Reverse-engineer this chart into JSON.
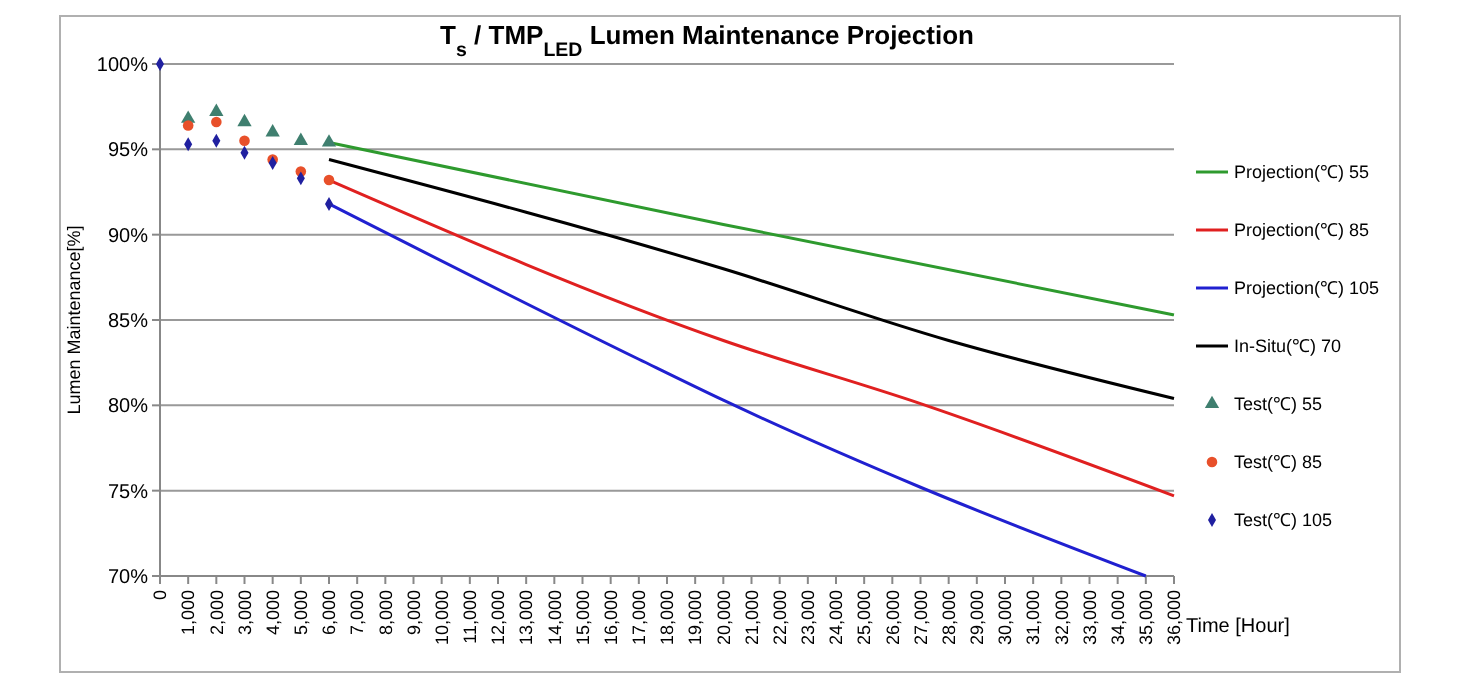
{
  "chart_data": {
    "type": "line",
    "title": "T$_{s}$ / TMP$_{LED}$ Lumen Maintenance Projection",
    "xlabel": "Time [Hour]",
    "ylabel": "Lumen Maintenance[%]",
    "xlim": [
      0,
      36000
    ],
    "ylim": [
      70,
      100
    ],
    "xticks": [
      0,
      {
        "value": 1000,
        "label": "1,000"
      },
      {
        "value": 2000,
        "label": "2,000"
      },
      {
        "value": 3000,
        "label": "3,000"
      },
      {
        "value": 4000,
        "label": "4,000"
      },
      {
        "value": 5000,
        "label": "5,000"
      },
      {
        "value": 6000,
        "label": "6,000"
      },
      {
        "value": 7000,
        "label": "7,000"
      },
      {
        "value": 8000,
        "label": "8,000"
      },
      {
        "value": 9000,
        "label": "9,000"
      },
      {
        "value": 10000,
        "label": "10,000"
      },
      {
        "value": 11000,
        "label": "11,000"
      },
      {
        "value": 12000,
        "label": "12,000"
      },
      {
        "value": 13000,
        "label": "13,000"
      },
      {
        "value": 14000,
        "label": "14,000"
      },
      {
        "value": 15000,
        "label": "15,000"
      },
      {
        "value": 16000,
        "label": "16,000"
      },
      {
        "value": 17000,
        "label": "17,000"
      },
      {
        "value": 18000,
        "label": "18,000"
      },
      {
        "value": 19000,
        "label": "19,000"
      },
      {
        "value": 20000,
        "label": "20,000"
      },
      {
        "value": 21000,
        "label": "21,000"
      },
      {
        "value": 22000,
        "label": "22,000"
      },
      {
        "value": 23000,
        "label": "23,000"
      },
      {
        "value": 24000,
        "label": "24,000"
      },
      {
        "value": 25000,
        "label": "25,000"
      },
      {
        "value": 26000,
        "label": "26,000"
      },
      {
        "value": 27000,
        "label": "27,000"
      },
      {
        "value": 28000,
        "label": "28,000"
      },
      {
        "value": 29000,
        "label": "29,000"
      },
      {
        "value": 30000,
        "label": "30,000"
      },
      {
        "value": 31000,
        "label": "31,000"
      },
      {
        "value": 32000,
        "label": "32,000"
      },
      {
        "value": 33000,
        "label": "33,000"
      },
      {
        "value": 34000,
        "label": "34,000"
      },
      {
        "value": 35000,
        "label": "35,000"
      },
      {
        "value": 36000,
        "label": "36,000"
      }
    ],
    "yticks": [
      {
        "value": 70,
        "label": "70%"
      },
      {
        "value": 75,
        "label": "75%"
      },
      {
        "value": 80,
        "label": "80%"
      },
      {
        "value": 85,
        "label": "85%"
      },
      {
        "value": 90,
        "label": "90%"
      },
      {
        "value": 95,
        "label": "95%"
      },
      {
        "value": 100,
        "label": "100%"
      }
    ],
    "grid": "y",
    "legend": "right",
    "series": [
      {
        "name": "Projection(℃) 55",
        "color": "#2e9a2e",
        "marker": "none",
        "x": [
          6000,
          20000,
          36000
        ],
        "values": [
          95.4,
          90.6,
          85.3
        ]
      },
      {
        "name": "Projection(℃) 85",
        "color": "#e02020",
        "marker": "none",
        "x": [
          6000,
          20000,
          27000,
          36000
        ],
        "values": [
          93.2,
          83.8,
          80.1,
          74.7
        ]
      },
      {
        "name": "Projection(℃) 105",
        "color": "#2020d0",
        "marker": "none",
        "x": [
          6000,
          17000,
          20000,
          27000,
          35000
        ],
        "values": [
          91.8,
          82.7,
          80.3,
          75.2,
          70
        ]
      },
      {
        "name": "In-Situ(℃) 70",
        "color": "#000000",
        "marker": "none",
        "x": [
          6000,
          20000,
          28000,
          36000
        ],
        "values": [
          94.4,
          88.0,
          83.8,
          80.4
        ]
      },
      {
        "name": "Test(℃) 55",
        "type": "scatter",
        "color": "#3f7f6f",
        "marker": "triangle",
        "x": [
          1000,
          2000,
          3000,
          4000,
          5000,
          6000
        ],
        "values": [
          96.8,
          97.2,
          96.6,
          96.0,
          95.5,
          95.4
        ]
      },
      {
        "name": "Test(℃) 85",
        "type": "scatter",
        "color": "#e8502a",
        "marker": "circle",
        "x": [
          1000,
          2000,
          3000,
          4000,
          5000,
          6000
        ],
        "values": [
          96.4,
          96.6,
          95.5,
          94.4,
          93.7,
          93.2
        ]
      },
      {
        "name": "Test(℃) 105",
        "type": "scatter",
        "color": "#2020a0",
        "marker": "diamond",
        "x": [
          0,
          1000,
          2000,
          3000,
          4000,
          5000,
          6000
        ],
        "values": [
          100,
          95.3,
          95.5,
          94.8,
          94.2,
          93.3,
          91.8
        ]
      }
    ]
  }
}
